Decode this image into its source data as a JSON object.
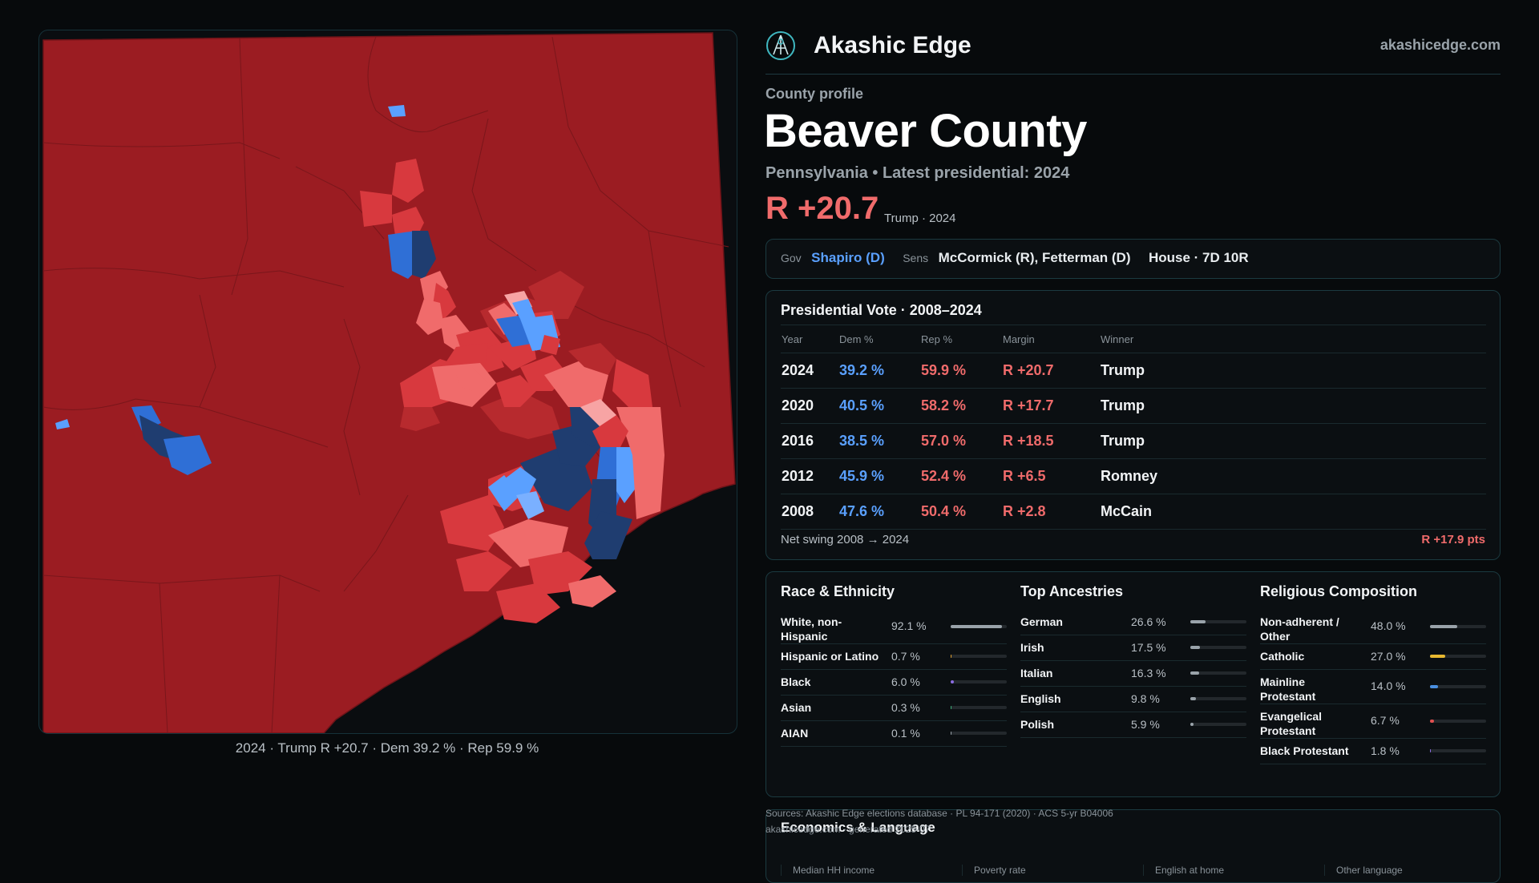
{
  "brand": {
    "name": "Akashic Edge",
    "site": "akashicedge.com"
  },
  "profile": {
    "eyebrow": "County profile",
    "county": "Beaver County",
    "subtitle": "Pennsylvania • Latest presidential: 2024",
    "margin": "R +20.7",
    "margin_note": "Trump · 2024"
  },
  "officials": {
    "gov_label": "Gov",
    "gov": "Shapiro (D)",
    "sens_label": "Sens",
    "sens": "McCormick (R), Fetterman (D)",
    "house": "House · 7D 10R"
  },
  "presidential": {
    "title": "Presidential Vote · 2008–2024",
    "columns": [
      "Year",
      "Dem %",
      "Rep %",
      "Margin",
      "Winner"
    ],
    "rows": [
      {
        "year": "2024",
        "dem": "39.2 %",
        "rep": "59.9 %",
        "margin": "R +20.7",
        "winner": "Trump"
      },
      {
        "year": "2020",
        "dem": "40.5 %",
        "rep": "58.2 %",
        "margin": "R +17.7",
        "winner": "Trump"
      },
      {
        "year": "2016",
        "dem": "38.5 %",
        "rep": "57.0 %",
        "margin": "R +18.5",
        "winner": "Trump"
      },
      {
        "year": "2012",
        "dem": "45.9 %",
        "rep": "52.4 %",
        "margin": "R +6.5",
        "winner": "Romney"
      },
      {
        "year": "2008",
        "dem": "47.6 %",
        "rep": "50.4 %",
        "margin": "R +2.8",
        "winner": "McCain"
      }
    ],
    "net_swing_label": "Net swing 2008 → 2024",
    "net_swing_value": "R +17.9 pts"
  },
  "race": {
    "title": "Race & Ethnicity",
    "items": [
      {
        "name": "White, non-Hispanic",
        "pct": "92.1 %",
        "value": 0.921,
        "color": "#9aa3aa"
      },
      {
        "name": "Hispanic or Latino",
        "pct": "0.7 %",
        "value": 0.007,
        "color": "#e0a030"
      },
      {
        "name": "Black",
        "pct": "6.0 %",
        "value": 0.06,
        "color": "#8a6be0"
      },
      {
        "name": "Asian",
        "pct": "0.3 %",
        "value": 0.003,
        "color": "#3fb07a"
      },
      {
        "name": "AIAN",
        "pct": "0.1 %",
        "value": 0.001,
        "color": "#9aa3aa"
      }
    ]
  },
  "ancestry": {
    "title": "Top Ancestries",
    "items": [
      {
        "name": "German",
        "pct": "26.6 %",
        "value": 0.266,
        "color": "#9aa3aa"
      },
      {
        "name": "Irish",
        "pct": "17.5 %",
        "value": 0.175,
        "color": "#9aa3aa"
      },
      {
        "name": "Italian",
        "pct": "16.3 %",
        "value": 0.163,
        "color": "#9aa3aa"
      },
      {
        "name": "English",
        "pct": "9.8 %",
        "value": 0.098,
        "color": "#9aa3aa"
      },
      {
        "name": "Polish",
        "pct": "5.9 %",
        "value": 0.059,
        "color": "#9aa3aa"
      }
    ]
  },
  "religion": {
    "title": "Religious Composition",
    "items": [
      {
        "name": "Non-adherent / Other",
        "pct": "48.0 %",
        "value": 0.48,
        "color": "#9aa3aa"
      },
      {
        "name": "Catholic",
        "pct": "27.0 %",
        "value": 0.27,
        "color": "#e8b830"
      },
      {
        "name": "Mainline Protestant",
        "pct": "14.0 %",
        "value": 0.14,
        "color": "#4a8fe0"
      },
      {
        "name": "Evangelical Protestant",
        "pct": "6.7 %",
        "value": 0.067,
        "color": "#e05050"
      },
      {
        "name": "Black Protestant",
        "pct": "1.8 %",
        "value": 0.018,
        "color": "#8a6be0"
      }
    ]
  },
  "economics": {
    "title": "Economics & Language",
    "columns": [
      "Median HH income",
      "Poverty rate",
      "English at home",
      "Other language"
    ]
  },
  "sources": {
    "line1": "Sources: Akashic Edge elections database · PL 94-171 (2020) · ACS 5-yr B04006",
    "line2": "akashicedge.com · generated 2025-07"
  },
  "map": {
    "caption": "2024 · Trump R +20.7 · Dem 39.2 % · Rep 59.9 %",
    "colors": {
      "safe_r": "#9b1c22",
      "lean_r": "#b72a2e",
      "mid_r": "#d8393e",
      "light_r": "#f06b6b",
      "pale_r": "#f7a4a4",
      "light_d": "#5aa0ff",
      "mid_d": "#2f6fd6",
      "deep_d": "#1f3d70"
    }
  }
}
